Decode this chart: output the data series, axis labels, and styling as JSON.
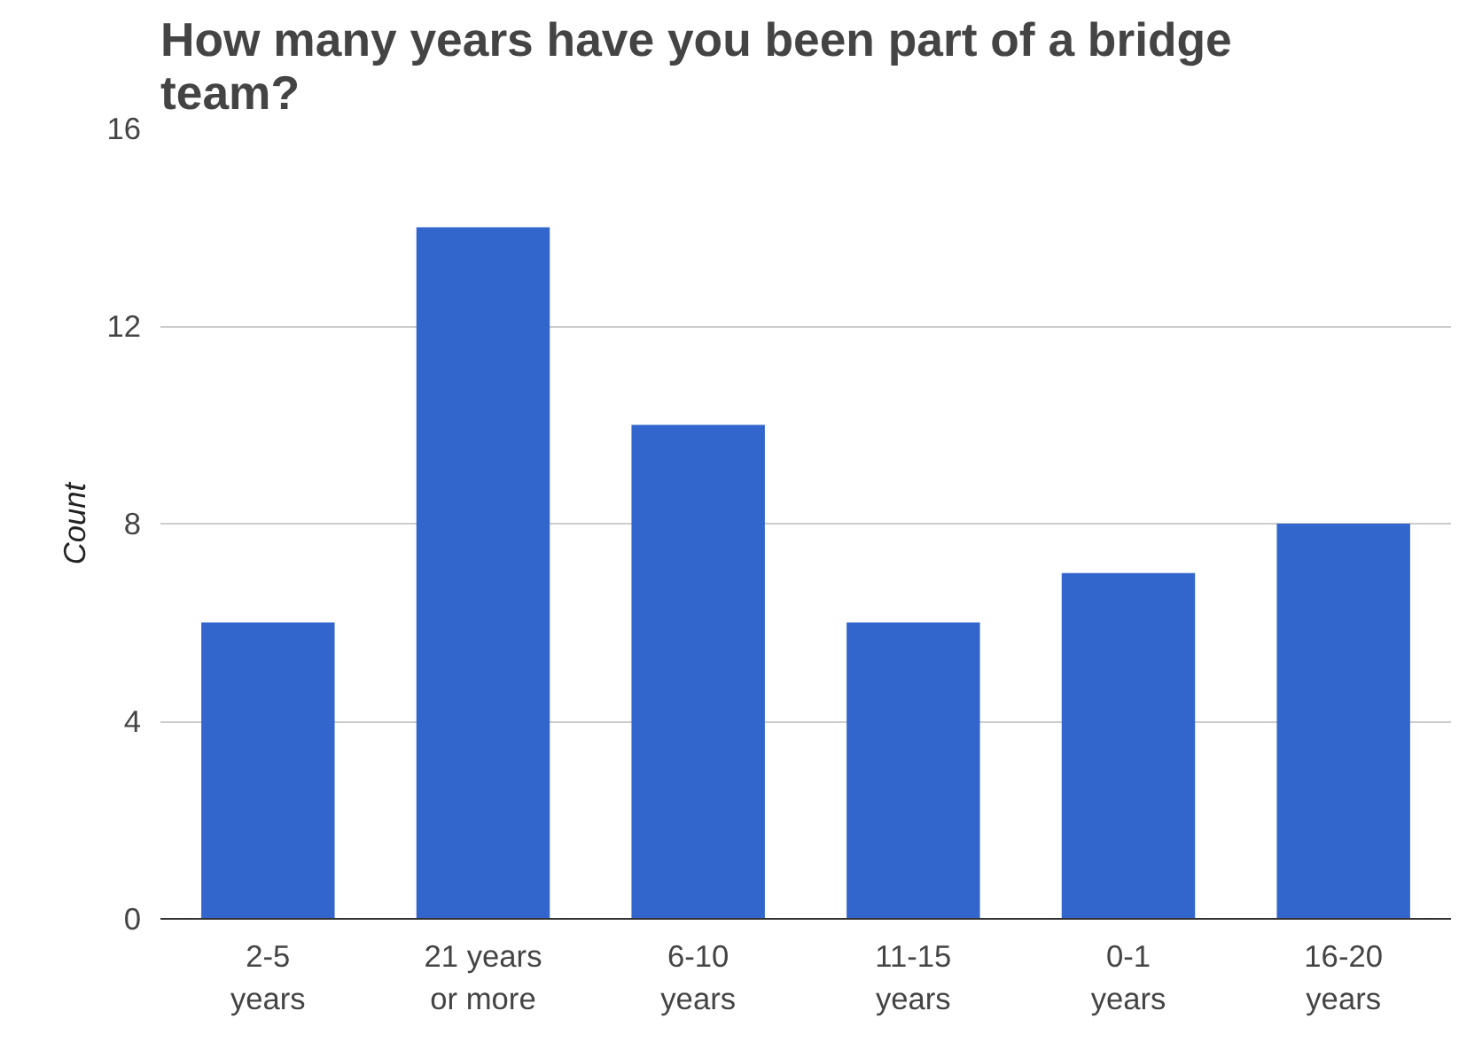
{
  "chart_data": {
    "type": "bar",
    "title": "How many years have you been part of a bridge team?",
    "ylabel": "Count",
    "categories": [
      "2-5\nyears",
      "21 years\nor more",
      "6-10\nyears",
      "11-15\nyears",
      "0-1\nyears",
      "16-20\nyears"
    ],
    "values": [
      6,
      14,
      10,
      6,
      7,
      8
    ],
    "color": "#3366cc",
    "ylim": [
      0,
      16
    ],
    "yticks": [
      0,
      4,
      8,
      12,
      16
    ],
    "grid": "y"
  }
}
